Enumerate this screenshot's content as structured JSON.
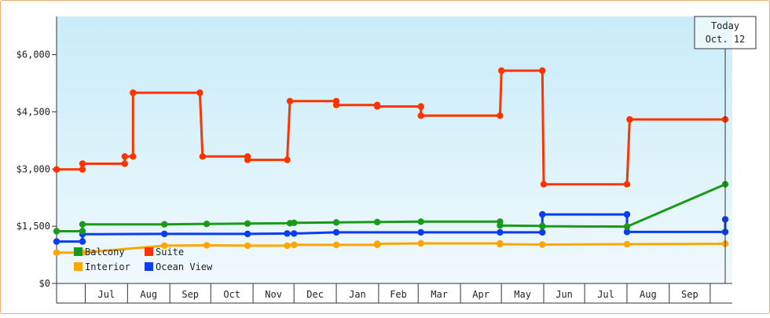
{
  "chart_data": {
    "type": "line",
    "title": "",
    "xlabel": "",
    "ylabel": "",
    "ylim": [
      0,
      7000
    ],
    "y_ticks": [
      "$0",
      "$1,500",
      "$3,000",
      "$4,500",
      "$6,000"
    ],
    "y_tick_values": [
      0,
      1500,
      3000,
      4500,
      6000
    ],
    "x_range": [
      "2023-06-10",
      "2024-10-12"
    ],
    "month_labels": [
      "Jul",
      "Aug",
      "Sep",
      "Oct",
      "Nov",
      "Dec",
      "Jan",
      "Feb",
      "Mar",
      "Apr",
      "May",
      "Jun",
      "Jul",
      "Aug",
      "Sep"
    ],
    "month_starts": [
      "2023-07-01",
      "2023-08-01",
      "2023-09-01",
      "2023-10-01",
      "2023-11-01",
      "2023-12-01",
      "2024-01-01",
      "2024-02-01",
      "2024-03-01",
      "2024-04-01",
      "2024-05-01",
      "2024-06-01",
      "2024-07-01",
      "2024-08-01",
      "2024-09-01",
      "2024-10-01"
    ],
    "today": {
      "line1": "Today",
      "line2": "Oct. 12",
      "date": "2024-10-12"
    },
    "legend": {
      "position": "bottom-left"
    },
    "series": [
      {
        "name": "Balcony",
        "color": "#1a9a1a",
        "points": [
          [
            "2023-06-10",
            1370
          ],
          [
            "2023-06-29",
            1370
          ],
          [
            "2023-06-29",
            1550
          ],
          [
            "2023-08-28",
            1550
          ],
          [
            "2023-09-28",
            1560
          ],
          [
            "2023-10-28",
            1570
          ],
          [
            "2023-11-28",
            1580
          ],
          [
            "2023-12-01",
            1590
          ],
          [
            "2024-01-01",
            1600
          ],
          [
            "2024-01-31",
            1610
          ],
          [
            "2024-03-03",
            1620
          ],
          [
            "2024-04-30",
            1620
          ],
          [
            "2024-04-30",
            1520
          ],
          [
            "2024-05-31",
            1510
          ],
          [
            "2024-05-31",
            1500
          ],
          [
            "2024-08-01",
            1490
          ],
          [
            "2024-10-12",
            2600
          ]
        ]
      },
      {
        "name": "Suite",
        "color": "#ff3300",
        "points": [
          [
            "2023-06-10",
            2990
          ],
          [
            "2023-06-29",
            2990
          ],
          [
            "2023-06-29",
            3140
          ],
          [
            "2023-07-30",
            3140
          ],
          [
            "2023-07-30",
            3330
          ],
          [
            "2023-08-05",
            3330
          ],
          [
            "2023-08-05",
            5000
          ],
          [
            "2023-09-23",
            5000
          ],
          [
            "2023-09-25",
            3330
          ],
          [
            "2023-10-28",
            3330
          ],
          [
            "2023-10-28",
            3240
          ],
          [
            "2023-11-26",
            3240
          ],
          [
            "2023-11-28",
            4780
          ],
          [
            "2024-01-01",
            4780
          ],
          [
            "2024-01-01",
            4680
          ],
          [
            "2024-01-31",
            4680
          ],
          [
            "2024-01-31",
            4640
          ],
          [
            "2024-03-03",
            4640
          ],
          [
            "2024-03-03",
            4400
          ],
          [
            "2024-04-30",
            4400
          ],
          [
            "2024-05-01",
            5580
          ],
          [
            "2024-05-31",
            5580
          ],
          [
            "2024-06-01",
            2600
          ],
          [
            "2024-08-01",
            2600
          ],
          [
            "2024-08-03",
            4300
          ],
          [
            "2024-10-12",
            4300
          ]
        ]
      },
      {
        "name": "Interior",
        "color": "#ffa500",
        "points": [
          [
            "2023-06-10",
            810
          ],
          [
            "2023-06-29",
            810
          ],
          [
            "2023-06-29",
            810
          ],
          [
            "2023-08-28",
            990
          ],
          [
            "2023-09-28",
            1000
          ],
          [
            "2023-10-28",
            990
          ],
          [
            "2023-11-26",
            990
          ],
          [
            "2023-12-01",
            1010
          ],
          [
            "2024-01-01",
            1010
          ],
          [
            "2024-01-31",
            1010
          ],
          [
            "2024-01-31",
            1040
          ],
          [
            "2024-03-03",
            1050
          ],
          [
            "2024-04-30",
            1050
          ],
          [
            "2024-04-30",
            1030
          ],
          [
            "2024-05-31",
            1020
          ],
          [
            "2024-08-01",
            1030
          ],
          [
            "2024-10-12",
            1040
          ]
        ]
      },
      {
        "name": "Ocean View",
        "color": "#0a3cf0",
        "points": [
          [
            "2023-06-10",
            1100
          ],
          [
            "2023-06-29",
            1100
          ],
          [
            "2023-06-29",
            1290
          ],
          [
            "2023-08-28",
            1300
          ],
          [
            "2023-10-28",
            1300
          ],
          [
            "2023-11-26",
            1310
          ],
          [
            "2023-12-01",
            1310
          ],
          [
            "2024-01-01",
            1340
          ],
          [
            "2024-03-03",
            1340
          ],
          [
            "2024-04-30",
            1340
          ],
          [
            "2024-05-31",
            1340
          ],
          [
            "2024-05-31",
            1810
          ],
          [
            "2024-08-01",
            1810
          ],
          [
            "2024-08-01",
            1350
          ],
          [
            "2024-10-12",
            1350
          ],
          [
            "2024-10-12",
            1680
          ]
        ]
      }
    ]
  }
}
